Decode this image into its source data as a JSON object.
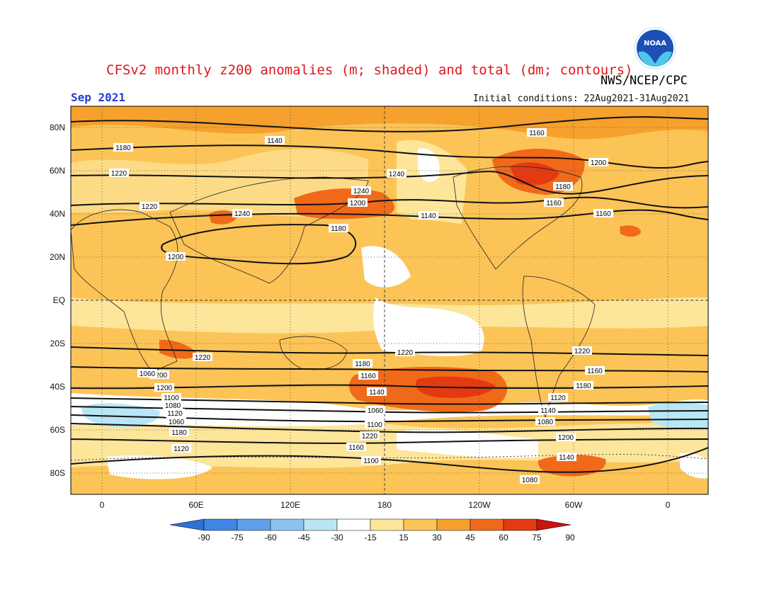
{
  "header": {
    "title": "CFSv2 monthly z200 anomalies (m; shaded) and total (dm; contours)",
    "agency": "NWS/NCEP/CPC",
    "month": "Sep 2021",
    "initial_conditions": "Initial conditions: 22Aug2021-31Aug2021",
    "logo_text": "NOAA"
  },
  "map": {
    "lat_labels": [
      "80N",
      "60N",
      "40N",
      "20N",
      "EQ",
      "20S",
      "40S",
      "60S",
      "80S"
    ],
    "lon_labels": [
      "0",
      "60E",
      "120E",
      "180",
      "120W",
      "60W",
      "0"
    ],
    "colorbar": {
      "labels": [
        "-90",
        "-75",
        "-60",
        "-45",
        "-30",
        "-15",
        "15",
        "30",
        "45",
        "60",
        "75",
        "90"
      ],
      "colors": [
        "#2f6fd8",
        "#3f86e6",
        "#5fa0ec",
        "#8dc3f2",
        "#b9e6f4",
        "#ffffff",
        "#fde59a",
        "#fcc457",
        "#f6a12d",
        "#f06a1a",
        "#e43a12",
        "#c8130e"
      ]
    },
    "contour_labels": [
      "1140",
      "1160",
      "1180",
      "1200",
      "1220",
      "1240",
      "1240",
      "1180",
      "1200",
      "1160",
      "1220",
      "1240",
      "1140",
      "1160",
      "1180",
      "1200",
      "1220",
      "1220",
      "1220",
      "1200",
      "1180",
      "1160",
      "1200",
      "1160",
      "1180",
      "1140",
      "1120",
      "1100",
      "1080",
      "1060",
      "1140",
      "1120",
      "1100",
      "1080",
      "1060",
      "1220",
      "1200",
      "1180",
      "1160",
      "1140",
      "1120",
      "1100",
      "1080",
      "1060"
    ]
  }
}
